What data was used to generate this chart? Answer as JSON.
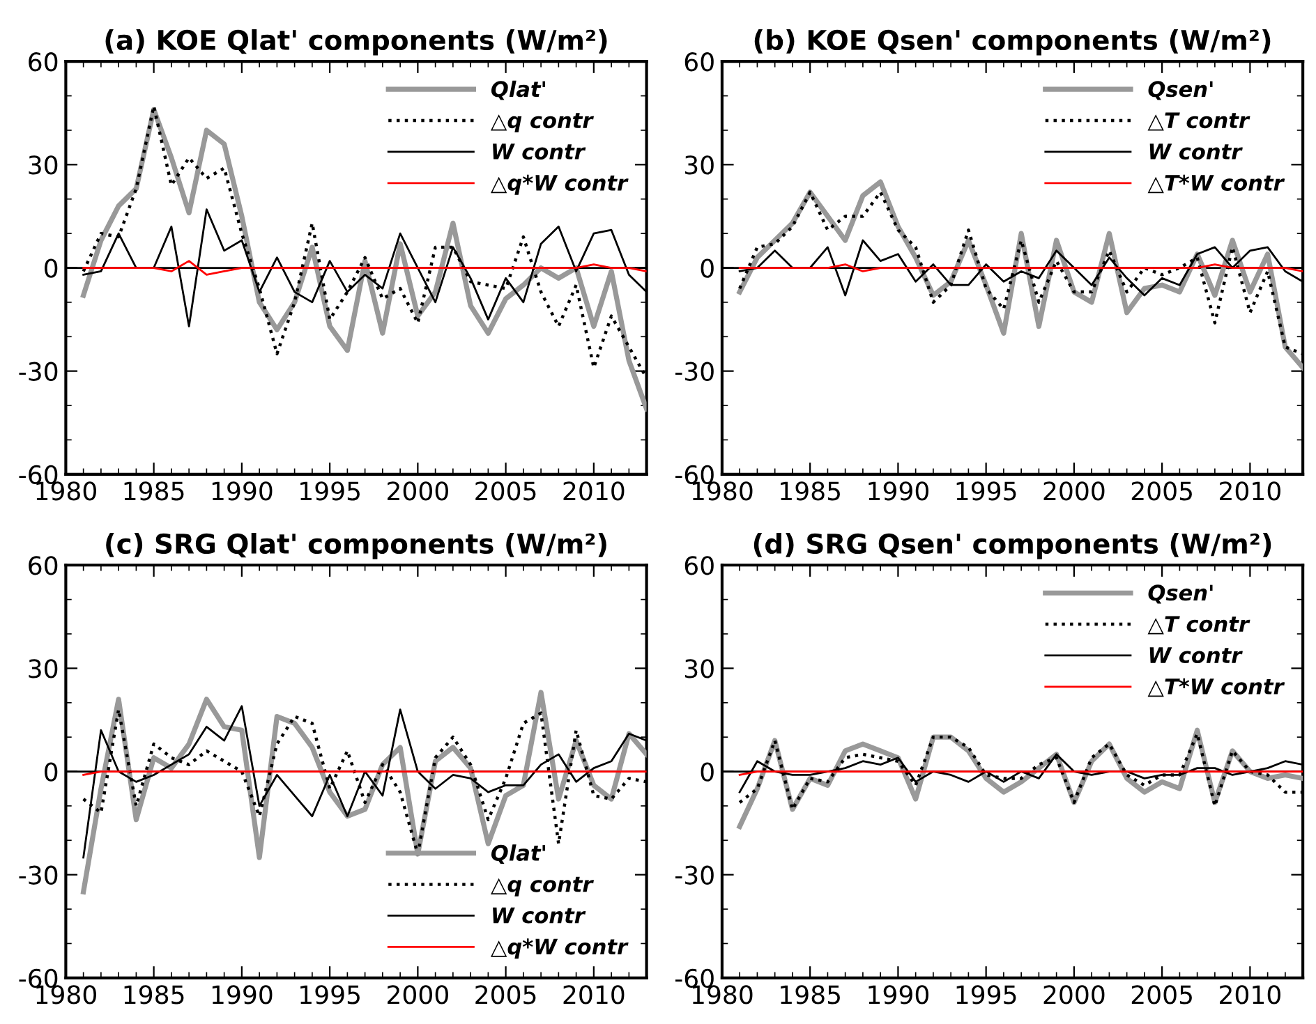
{
  "chart_data": [
    {
      "type": "line",
      "title": "(a) KOE Qlat' components (W/m²)",
      "x": [
        1981,
        1982,
        1983,
        1984,
        1985,
        1986,
        1987,
        1988,
        1989,
        1990,
        1991,
        1992,
        1993,
        1994,
        1995,
        1996,
        1997,
        1998,
        1999,
        2000,
        2001,
        2002,
        2003,
        2004,
        2005,
        2006,
        2007,
        2008,
        2009,
        2010,
        2011,
        2012,
        2013
      ],
      "xlim": [
        1980,
        2013
      ],
      "xticks": [
        1980,
        1985,
        1990,
        1995,
        2000,
        2005,
        2010
      ],
      "ylim": [
        -60,
        60
      ],
      "yticks": [
        -60,
        -30,
        0,
        30,
        60
      ],
      "legend": "top right",
      "grid": false,
      "ref_lines": [
        {
          "axis": "y",
          "value": 0,
          "color": "#000000",
          "line_style": "solid"
        }
      ],
      "series": [
        {
          "name": "Qlat'",
          "color": "#999999",
          "line_style": "solid",
          "values": [
            -8,
            8,
            18,
            23,
            46,
            32,
            16,
            40,
            36,
            15,
            -10,
            -18,
            -10,
            6,
            -17,
            -24,
            2,
            -19,
            7,
            -14,
            -7,
            13,
            -11,
            -19,
            -9,
            -5,
            0,
            -3,
            0,
            -17,
            -1,
            -27,
            -41
          ]
        },
        {
          "name": "△q contr",
          "color": "#000000",
          "line_style": "dotted",
          "values": [
            -1,
            10,
            9,
            23,
            47,
            24,
            32,
            26,
            29,
            10,
            -6,
            -25,
            -10,
            13,
            -15,
            -7,
            3,
            -9,
            -6,
            -16,
            6,
            6,
            -4,
            -5,
            -6,
            9,
            -7,
            -17,
            -5,
            -29,
            -14,
            -23,
            -32
          ]
        },
        {
          "name": "W contr",
          "color": "#000000",
          "line_style": "solid",
          "values": [
            -2,
            -1,
            10,
            0,
            0,
            12,
            -17,
            17,
            5,
            8,
            -7,
            3,
            -7,
            -10,
            2,
            -7,
            -2,
            -6,
            10,
            0,
            -10,
            6,
            -3,
            -15,
            -3,
            -10,
            7,
            12,
            -1,
            10,
            11,
            -2,
            -7
          ]
        },
        {
          "name": "△q*W contr",
          "color": "#ff0000",
          "line_style": "solid",
          "values": [
            0,
            0,
            0,
            0,
            0,
            -1,
            2,
            -2,
            -1,
            0,
            0,
            0,
            0,
            0,
            0,
            0,
            0,
            0,
            0,
            0,
            0,
            0,
            0,
            0,
            0,
            0,
            0,
            0,
            0,
            1,
            0,
            0,
            -1
          ]
        }
      ]
    },
    {
      "type": "line",
      "title": "(b) KOE Qsen' components (W/m²)",
      "x": [
        1981,
        1982,
        1983,
        1984,
        1985,
        1986,
        1987,
        1988,
        1989,
        1990,
        1991,
        1992,
        1993,
        1994,
        1995,
        1996,
        1997,
        1998,
        1999,
        2000,
        2001,
        2002,
        2003,
        2004,
        2005,
        2006,
        2007,
        2008,
        2009,
        2010,
        2011,
        2012,
        2013
      ],
      "xlim": [
        1980,
        2013
      ],
      "xticks": [
        1980,
        1985,
        1990,
        1995,
        2000,
        2005,
        2010
      ],
      "ylim": [
        -60,
        60
      ],
      "yticks": [
        -60,
        -30,
        0,
        30,
        60
      ],
      "legend": "top right",
      "grid": false,
      "ref_lines": [
        {
          "axis": "y",
          "value": 0,
          "color": "#000000",
          "line_style": "solid"
        }
      ],
      "series": [
        {
          "name": "Qsen'",
          "color": "#999999",
          "line_style": "solid",
          "values": [
            -7,
            3,
            8,
            13,
            22,
            15,
            8,
            21,
            25,
            12,
            3,
            -8,
            -4,
            8,
            -5,
            -19,
            10,
            -17,
            8,
            -7,
            -10,
            10,
            -13,
            -6,
            -5,
            -7,
            4,
            -8,
            8,
            -7,
            4,
            -23,
            -29
          ]
        },
        {
          "name": "△T contr",
          "color": "#000000",
          "line_style": "dotted",
          "values": [
            -6,
            6,
            7,
            12,
            22,
            11,
            15,
            15,
            22,
            11,
            6,
            -10,
            -5,
            11,
            -6,
            -12,
            8,
            -10,
            2,
            -7,
            -7,
            5,
            -7,
            0,
            -2,
            0,
            3,
            -16,
            6,
            -13,
            -1,
            -23,
            -25
          ]
        },
        {
          "name": "W contr",
          "color": "#000000",
          "line_style": "solid",
          "values": [
            -1,
            0,
            5,
            0,
            0,
            6,
            -8,
            8,
            2,
            4,
            -4,
            1,
            -5,
            -5,
            1,
            -4,
            -1,
            -3,
            5,
            0,
            -5,
            3,
            -3,
            -8,
            -3,
            -5,
            4,
            6,
            0,
            5,
            6,
            -1,
            -4
          ]
        },
        {
          "name": "△T*W contr",
          "color": "#ff0000",
          "line_style": "solid",
          "values": [
            0,
            0,
            0,
            0,
            0,
            0,
            1,
            -1,
            0,
            0,
            0,
            0,
            0,
            0,
            0,
            0,
            0,
            0,
            0,
            0,
            0,
            0,
            0,
            0,
            0,
            0,
            0,
            1,
            0,
            0,
            0,
            0,
            -1
          ]
        }
      ]
    },
    {
      "type": "line",
      "title": "(c) SRG Qlat' components (W/m²)",
      "x": [
        1981,
        1982,
        1983,
        1984,
        1985,
        1986,
        1987,
        1988,
        1989,
        1990,
        1991,
        1992,
        1993,
        1994,
        1995,
        1996,
        1997,
        1998,
        1999,
        2000,
        2001,
        2002,
        2003,
        2004,
        2005,
        2006,
        2007,
        2008,
        2009,
        2010,
        2011,
        2012,
        2013
      ],
      "xlim": [
        1980,
        2013
      ],
      "xticks": [
        1980,
        1985,
        1990,
        1995,
        2000,
        2005,
        2010
      ],
      "ylim": [
        -60,
        60
      ],
      "yticks": [
        -60,
        -30,
        0,
        30,
        60
      ],
      "legend": "bottom right",
      "grid": false,
      "ref_lines": [
        {
          "axis": "y",
          "value": 0,
          "color": "#000000",
          "line_style": "solid"
        }
      ],
      "series": [
        {
          "name": "Qlat'",
          "color": "#999999",
          "line_style": "solid",
          "values": [
            -35,
            -5,
            21,
            -14,
            4,
            1,
            8,
            21,
            13,
            12,
            -25,
            16,
            14,
            7,
            -6,
            -13,
            -11,
            2,
            7,
            -24,
            3,
            7,
            1,
            -21,
            -7,
            -4,
            23,
            -8,
            9,
            -4,
            -8,
            11,
            5
          ]
        },
        {
          "name": "△q contr",
          "color": "#000000",
          "line_style": "dotted",
          "values": [
            -8,
            -12,
            18,
            -10,
            8,
            4,
            2,
            6,
            3,
            0,
            -13,
            8,
            16,
            14,
            -5,
            6,
            -9,
            2,
            -6,
            -24,
            4,
            10,
            2,
            -14,
            -2,
            14,
            17,
            -21,
            12,
            -7,
            -8,
            -2,
            -3
          ]
        },
        {
          "name": "W contr",
          "color": "#000000",
          "line_style": "solid",
          "values": [
            -25,
            12,
            0,
            -3,
            -1,
            2,
            5,
            13,
            9,
            19,
            -10,
            -1,
            -7,
            -13,
            -1,
            -13,
            0,
            -7,
            18,
            0,
            -5,
            -1,
            -2,
            -6,
            -4,
            -4,
            2,
            5,
            -3,
            1,
            3,
            11,
            9
          ]
        },
        {
          "name": "△q*W contr",
          "color": "#ff0000",
          "line_style": "solid",
          "values": [
            -1,
            0,
            0,
            0,
            0,
            0,
            0,
            0,
            0,
            0,
            0,
            0,
            0,
            0,
            0,
            0,
            0,
            0,
            0,
            0,
            0,
            0,
            0,
            0,
            0,
            0,
            0,
            0,
            0,
            0,
            0,
            0,
            0
          ]
        }
      ]
    },
    {
      "type": "line",
      "title": "(d) SRG Qsen' components (W/m²)",
      "x": [
        1981,
        1982,
        1983,
        1984,
        1985,
        1986,
        1987,
        1988,
        1989,
        1990,
        1991,
        1992,
        1993,
        1994,
        1995,
        1996,
        1997,
        1998,
        1999,
        2000,
        2001,
        2002,
        2003,
        2004,
        2005,
        2006,
        2007,
        2008,
        2009,
        2010,
        2011,
        2012,
        2013
      ],
      "xlim": [
        1980,
        2013
      ],
      "xticks": [
        1980,
        1985,
        1990,
        1995,
        2000,
        2005,
        2010
      ],
      "ylim": [
        -60,
        60
      ],
      "yticks": [
        -60,
        -30,
        0,
        30,
        60
      ],
      "legend": "top right",
      "grid": false,
      "ref_lines": [
        {
          "axis": "y",
          "value": 0,
          "color": "#000000",
          "line_style": "solid"
        }
      ],
      "series": [
        {
          "name": "Qsen'",
          "color": "#999999",
          "line_style": "solid",
          "values": [
            -16,
            -5,
            9,
            -11,
            -2,
            -4,
            6,
            8,
            6,
            4,
            -8,
            10,
            10,
            6,
            -2,
            -6,
            -3,
            1,
            5,
            -9,
            3,
            8,
            -2,
            -6,
            -3,
            -5,
            12,
            -9,
            6,
            0,
            -2,
            -1,
            -2
          ]
        },
        {
          "name": "△T contr",
          "color": "#000000",
          "line_style": "dotted",
          "values": [
            -9,
            -5,
            9,
            -11,
            -2,
            -3,
            4,
            5,
            4,
            3,
            -4,
            10,
            10,
            7,
            -1,
            -2,
            -2,
            2,
            4,
            -9,
            4,
            8,
            -1,
            -4,
            -1,
            -1,
            11,
            -10,
            6,
            0,
            -1,
            -6,
            -6
          ]
        },
        {
          "name": "W contr",
          "color": "#000000",
          "line_style": "solid",
          "values": [
            -6,
            3,
            0,
            -1,
            -1,
            0,
            1,
            3,
            2,
            4,
            -3,
            0,
            -1,
            -3,
            0,
            -3,
            0,
            -2,
            5,
            0,
            -1,
            0,
            0,
            -2,
            -1,
            -1,
            1,
            1,
            -1,
            0,
            1,
            3,
            2
          ]
        },
        {
          "name": "△T*W contr",
          "color": "#ff0000",
          "line_style": "solid",
          "values": [
            -1,
            0,
            0,
            0,
            0,
            0,
            0,
            0,
            0,
            0,
            0,
            0,
            0,
            0,
            0,
            0,
            0,
            0,
            0,
            0,
            0,
            0,
            0,
            0,
            0,
            0,
            0,
            0,
            0,
            0,
            0,
            0,
            0
          ]
        }
      ]
    }
  ]
}
